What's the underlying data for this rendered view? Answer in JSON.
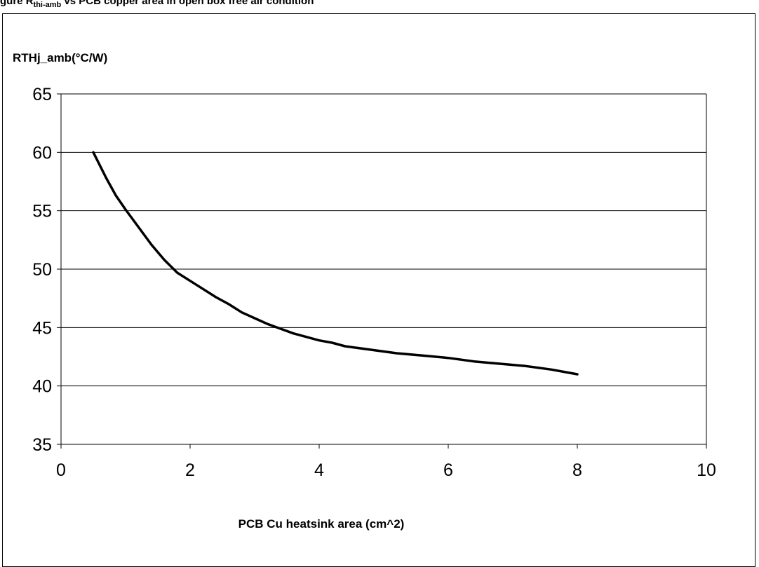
{
  "caption": {
    "prefix": "gure",
    "subscript": "thj-amb",
    "suffix": "vs PCB copper area in open box free air condition"
  },
  "chart_data": {
    "type": "line",
    "xlabel": "PCB Cu heatsink area (cm^2)",
    "ylabel": "RTHj_amb(°C/W)",
    "xlim": [
      0,
      10
    ],
    "ylim": [
      35,
      65
    ],
    "x_ticks": [
      "0",
      "2",
      "4",
      "6",
      "8",
      "10"
    ],
    "y_ticks": [
      "35",
      "40",
      "45",
      "50",
      "55",
      "60",
      "65"
    ],
    "grid": "horizontal",
    "series": [
      {
        "color": "#000000",
        "x": [
          0.5,
          0.7,
          0.85,
          1.0,
          1.2,
          1.4,
          1.6,
          1.8,
          2.0,
          2.2,
          2.4,
          2.6,
          2.8,
          3.0,
          3.2,
          3.4,
          3.6,
          3.8,
          4.0,
          4.2,
          4.4,
          4.8,
          5.2,
          5.6,
          6.0,
          6.4,
          6.8,
          7.2,
          7.6,
          8.0
        ],
        "y": [
          60.0,
          57.8,
          56.3,
          55.1,
          53.6,
          52.1,
          50.8,
          49.7,
          49.0,
          48.3,
          47.6,
          47.0,
          46.3,
          45.8,
          45.3,
          44.9,
          44.5,
          44.2,
          43.9,
          43.7,
          43.4,
          43.1,
          42.8,
          42.6,
          42.4,
          42.1,
          41.9,
          41.7,
          41.4,
          41.0
        ]
      }
    ]
  }
}
